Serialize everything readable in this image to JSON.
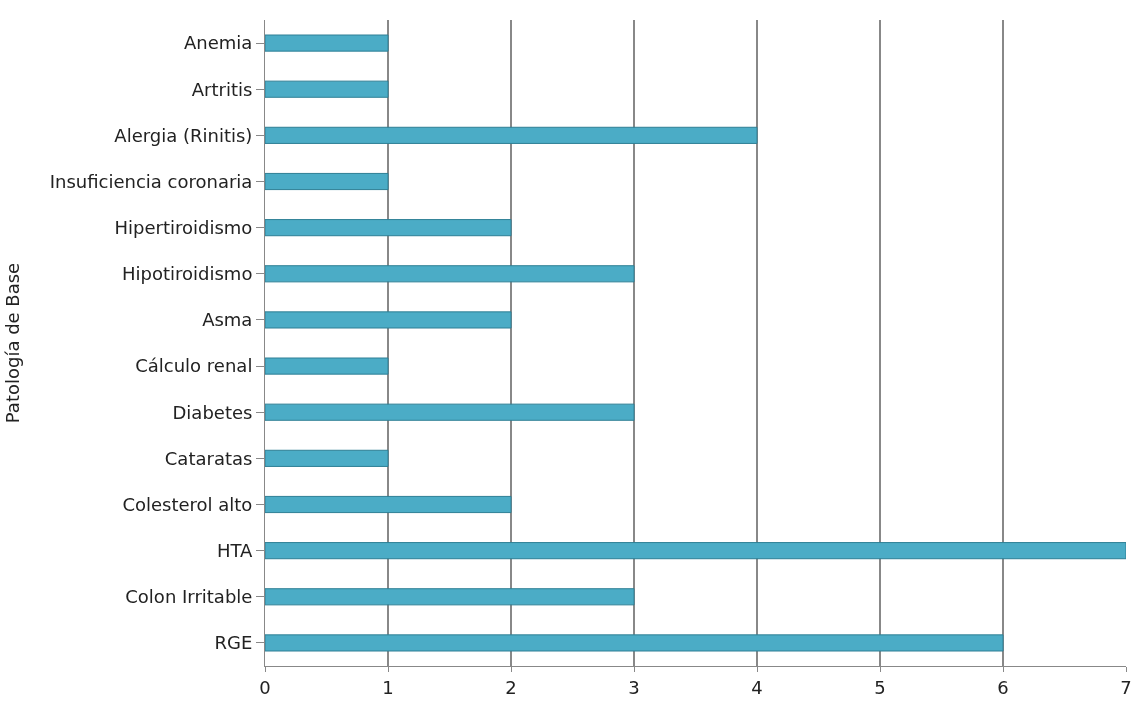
{
  "chart_data": {
    "type": "bar",
    "orientation": "horizontal",
    "ylabel": "Patología de Base",
    "categories": [
      "Anemia",
      "Artritis",
      "Alergia (Rinitis)",
      "Insuficiencia coronaria",
      "Hipertiroidismo",
      "Hipotiroidismo",
      "Asma",
      "Cálculo renal",
      "Diabetes",
      "Cataratas",
      "Colesterol alto",
      "HTA",
      "Colon Irritable",
      "RGE"
    ],
    "values": [
      1,
      1,
      4,
      1,
      2,
      3,
      2,
      1,
      3,
      1,
      2,
      7,
      3,
      6
    ],
    "color": "#4bacc6",
    "xlim": [
      0,
      7
    ],
    "xticks": [
      0,
      1,
      2,
      3,
      4,
      5,
      6,
      7
    ],
    "grid": "x",
    "legend": false
  }
}
